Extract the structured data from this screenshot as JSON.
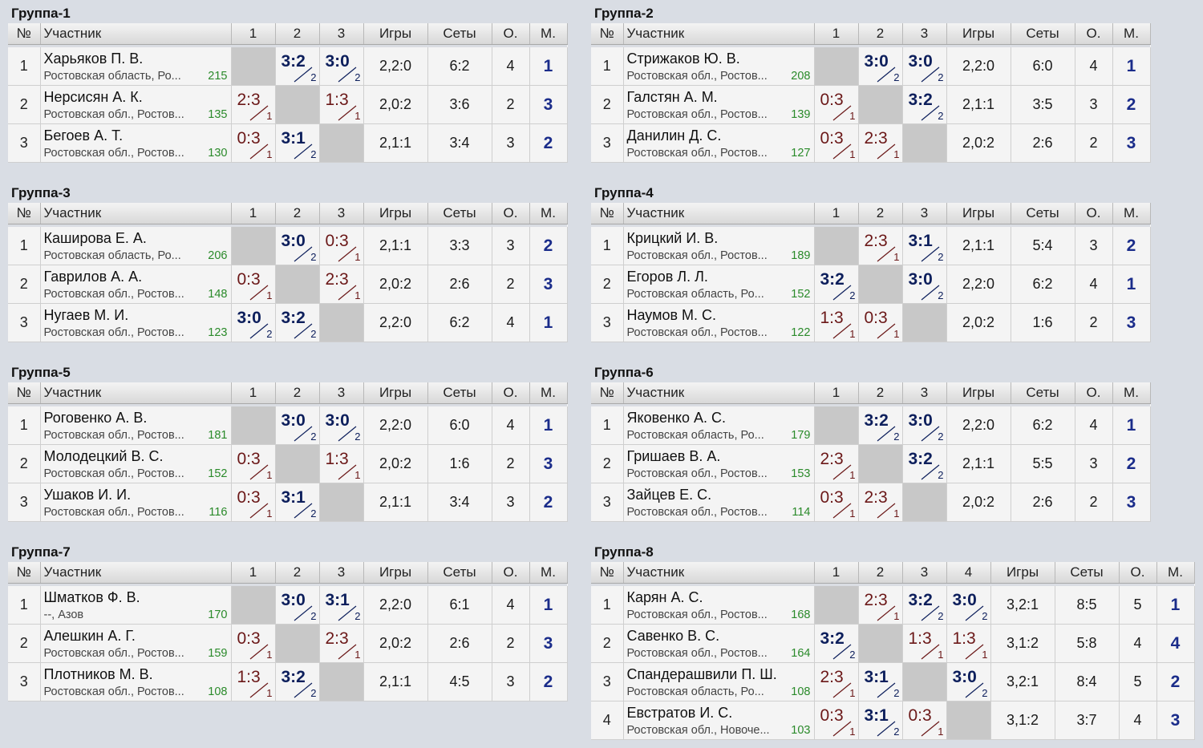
{
  "headers": {
    "num": "№",
    "name": "Участник",
    "games": "Игры",
    "sets": "Сеты",
    "points": "О.",
    "place": "М."
  },
  "groups": [
    {
      "title": "Группа-1",
      "players": [
        {
          "n": "1",
          "name": "Харьяков П. В.",
          "region": "Ростовская область, Ро...",
          "rating": "215",
          "res": [
            null,
            "3:2",
            "3:0"
          ],
          "games": "2,2:0",
          "sets": "6:2",
          "points": "4",
          "place": "1"
        },
        {
          "n": "2",
          "name": "Нерсисян А. К.",
          "region": "Ростовская обл., Ростов...",
          "rating": "135",
          "res": [
            "2:3",
            null,
            "1:3"
          ],
          "games": "2,0:2",
          "sets": "3:6",
          "points": "2",
          "place": "3"
        },
        {
          "n": "3",
          "name": "Бегоев А. Т.",
          "region": "Ростовская обл., Ростов...",
          "rating": "130",
          "res": [
            "0:3",
            "3:1",
            null
          ],
          "games": "2,1:1",
          "sets": "3:4",
          "points": "3",
          "place": "2"
        }
      ]
    },
    {
      "title": "Группа-2",
      "players": [
        {
          "n": "1",
          "name": "Стрижаков Ю. В.",
          "region": "Ростовская обл., Ростов...",
          "rating": "208",
          "res": [
            null,
            "3:0",
            "3:0"
          ],
          "games": "2,2:0",
          "sets": "6:0",
          "points": "4",
          "place": "1"
        },
        {
          "n": "2",
          "name": "Галстян А. М.",
          "region": "Ростовская обл., Ростов...",
          "rating": "139",
          "res": [
            "0:3",
            null,
            "3:2"
          ],
          "games": "2,1:1",
          "sets": "3:5",
          "points": "3",
          "place": "2"
        },
        {
          "n": "3",
          "name": "Данилин Д. С.",
          "region": "Ростовская обл., Ростов...",
          "rating": "127",
          "res": [
            "0:3",
            "2:3",
            null
          ],
          "games": "2,0:2",
          "sets": "2:6",
          "points": "2",
          "place": "3"
        }
      ]
    },
    {
      "title": "Группа-3",
      "players": [
        {
          "n": "1",
          "name": "Каширова Е. А.",
          "region": "Ростовская область, Ро...",
          "rating": "206",
          "res": [
            null,
            "3:0",
            "0:3"
          ],
          "games": "2,1:1",
          "sets": "3:3",
          "points": "3",
          "place": "2"
        },
        {
          "n": "2",
          "name": "Гаврилов А. А.",
          "region": "Ростовская обл., Ростов...",
          "rating": "148",
          "res": [
            "0:3",
            null,
            "2:3"
          ],
          "games": "2,0:2",
          "sets": "2:6",
          "points": "2",
          "place": "3"
        },
        {
          "n": "3",
          "name": "Нугаев М. И.",
          "region": "Ростовская обл., Ростов...",
          "rating": "123",
          "res": [
            "3:0",
            "3:2",
            null
          ],
          "games": "2,2:0",
          "sets": "6:2",
          "points": "4",
          "place": "1"
        }
      ]
    },
    {
      "title": "Группа-4",
      "players": [
        {
          "n": "1",
          "name": "Крицкий И. В.",
          "region": "Ростовская обл., Ростов...",
          "rating": "189",
          "res": [
            null,
            "2:3",
            "3:1"
          ],
          "games": "2,1:1",
          "sets": "5:4",
          "points": "3",
          "place": "2"
        },
        {
          "n": "2",
          "name": "Егоров Л. Л.",
          "region": "Ростовская область, Ро...",
          "rating": "152",
          "res": [
            "3:2",
            null,
            "3:0"
          ],
          "games": "2,2:0",
          "sets": "6:2",
          "points": "4",
          "place": "1"
        },
        {
          "n": "3",
          "name": "Наумов М. С.",
          "region": "Ростовская обл., Ростов...",
          "rating": "122",
          "res": [
            "1:3",
            "0:3",
            null
          ],
          "games": "2,0:2",
          "sets": "1:6",
          "points": "2",
          "place": "3"
        }
      ]
    },
    {
      "title": "Группа-5",
      "players": [
        {
          "n": "1",
          "name": "Роговенко А. В.",
          "region": "Ростовская обл., Ростов...",
          "rating": "181",
          "res": [
            null,
            "3:0",
            "3:0"
          ],
          "games": "2,2:0",
          "sets": "6:0",
          "points": "4",
          "place": "1"
        },
        {
          "n": "2",
          "name": "Молодецкий В. С.",
          "region": "Ростовская обл., Ростов...",
          "rating": "152",
          "res": [
            "0:3",
            null,
            "1:3"
          ],
          "games": "2,0:2",
          "sets": "1:6",
          "points": "2",
          "place": "3"
        },
        {
          "n": "3",
          "name": "Ушаков И. И.",
          "region": "Ростовская обл., Ростов...",
          "rating": "116",
          "res": [
            "0:3",
            "3:1",
            null
          ],
          "games": "2,1:1",
          "sets": "3:4",
          "points": "3",
          "place": "2"
        }
      ]
    },
    {
      "title": "Группа-6",
      "players": [
        {
          "n": "1",
          "name": "Яковенко А. С.",
          "region": "Ростовская область, Ро...",
          "rating": "179",
          "res": [
            null,
            "3:2",
            "3:0"
          ],
          "games": "2,2:0",
          "sets": "6:2",
          "points": "4",
          "place": "1"
        },
        {
          "n": "2",
          "name": "Гришаев В. А.",
          "region": "Ростовская обл., Ростов...",
          "rating": "153",
          "res": [
            "2:3",
            null,
            "3:2"
          ],
          "games": "2,1:1",
          "sets": "5:5",
          "points": "3",
          "place": "2"
        },
        {
          "n": "3",
          "name": "Зайцев Е. С.",
          "region": "Ростовская обл., Ростов...",
          "rating": "114",
          "res": [
            "0:3",
            "2:3",
            null
          ],
          "games": "2,0:2",
          "sets": "2:6",
          "points": "2",
          "place": "3"
        }
      ]
    },
    {
      "title": "Группа-7",
      "players": [
        {
          "n": "1",
          "name": "Шматков Ф. В.",
          "region": "--, Азов",
          "rating": "170",
          "res": [
            null,
            "3:0",
            "3:1"
          ],
          "games": "2,2:0",
          "sets": "6:1",
          "points": "4",
          "place": "1"
        },
        {
          "n": "2",
          "name": "Алешкин А. Г.",
          "region": "Ростовская обл., Ростов...",
          "rating": "159",
          "res": [
            "0:3",
            null,
            "2:3"
          ],
          "games": "2,0:2",
          "sets": "2:6",
          "points": "2",
          "place": "3"
        },
        {
          "n": "3",
          "name": "Плотников М. В.",
          "region": "Ростовская обл., Ростов...",
          "rating": "108",
          "res": [
            "1:3",
            "3:2",
            null
          ],
          "games": "2,1:1",
          "sets": "4:5",
          "points": "3",
          "place": "2"
        }
      ]
    },
    {
      "title": "Группа-8",
      "players": [
        {
          "n": "1",
          "name": "Карян А. С.",
          "region": "Ростовская обл., Ростов...",
          "rating": "168",
          "res": [
            null,
            "2:3",
            "3:2",
            "3:0"
          ],
          "games": "3,2:1",
          "sets": "8:5",
          "points": "5",
          "place": "1"
        },
        {
          "n": "2",
          "name": "Савенко В. С.",
          "region": "Ростовская обл., Ростов...",
          "rating": "164",
          "res": [
            "3:2",
            null,
            "1:3",
            "1:3"
          ],
          "games": "3,1:2",
          "sets": "5:8",
          "points": "4",
          "place": "4"
        },
        {
          "n": "3",
          "name": "Спандерашвили П. Ш.",
          "region": "Ростовская область, Ро...",
          "rating": "108",
          "res": [
            "2:3",
            "3:1",
            null,
            "3:0"
          ],
          "games": "3,2:1",
          "sets": "8:4",
          "points": "5",
          "place": "2"
        },
        {
          "n": "4",
          "name": "Евстратов И. С.",
          "region": "Ростовская обл., Новоче...",
          "rating": "103",
          "res": [
            "0:3",
            "3:1",
            "0:3",
            null
          ],
          "games": "3,1:2",
          "sets": "3:7",
          "points": "4",
          "place": "3"
        }
      ]
    }
  ]
}
